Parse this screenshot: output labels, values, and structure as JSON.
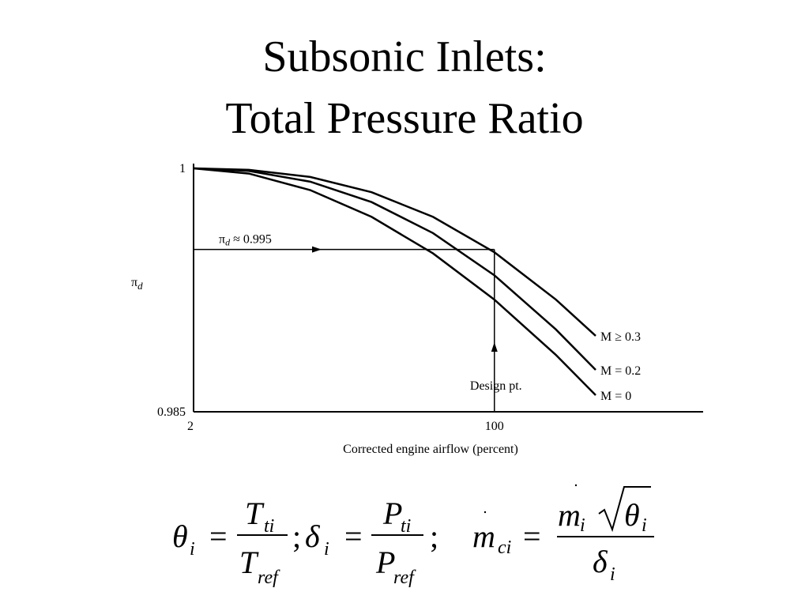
{
  "title": [
    "Subsonic Inlets:",
    "Total Pressure Ratio"
  ],
  "chart_data": {
    "type": "line",
    "x_label": "Corrected engine airflow (percent)",
    "y_label": {
      "base": "π",
      "sub": "d"
    },
    "x": [
      2,
      20,
      40,
      60,
      80,
      100,
      120,
      133
    ],
    "series": [
      {
        "name": "M ≥ 0.3",
        "color": "#000000",
        "values": [
          1,
          0.99991,
          0.99947,
          0.99853,
          0.99701,
          0.99483,
          0.99192,
          0.98968
        ]
      },
      {
        "name": "M = 0.2",
        "color": "#000000",
        "values": [
          1,
          0.99984,
          0.99918,
          0.99792,
          0.99601,
          0.99341,
          0.99008,
          0.98758
        ]
      },
      {
        "name": "M = 0",
        "color": "#000000",
        "values": [
          1,
          0.99968,
          0.99866,
          0.99701,
          0.99476,
          0.99191,
          0.98851,
          0.98602
        ]
      }
    ],
    "xlim": [
      2,
      168
    ],
    "ylim": [
      0.985,
      1
    ],
    "xticks": [
      2,
      100
    ],
    "yticks": [
      0.985,
      1
    ],
    "grid": false,
    "design_point": {
      "x": 100,
      "y": 0.995,
      "label": "Design pt.",
      "pressure_label": {
        "base": "π",
        "sub": "d",
        "rest": " ≈ 0.995"
      }
    }
  },
  "equation": {
    "separators": [
      "=",
      ";",
      "=",
      ";",
      "="
    ],
    "theta": {
      "lhs": {
        "base": "θ",
        "sub": "i"
      },
      "num": {
        "base": "T",
        "sub": "ti"
      },
      "den": {
        "base": "T",
        "sub": "ref"
      }
    },
    "delta": {
      "lhs": {
        "base": "δ",
        "sub": "i"
      },
      "num": {
        "base": "P",
        "sub": "ti"
      },
      "den": {
        "base": "P",
        "sub": "ref"
      }
    },
    "mass": {
      "lhs": {
        "base": "m",
        "sub": "ci"
      },
      "num": {
        "base": "m",
        "sub": "i",
        "root": {
          "base": "θ",
          "sub": "i"
        }
      },
      "den": {
        "base": "δ",
        "sub": "i"
      }
    }
  }
}
